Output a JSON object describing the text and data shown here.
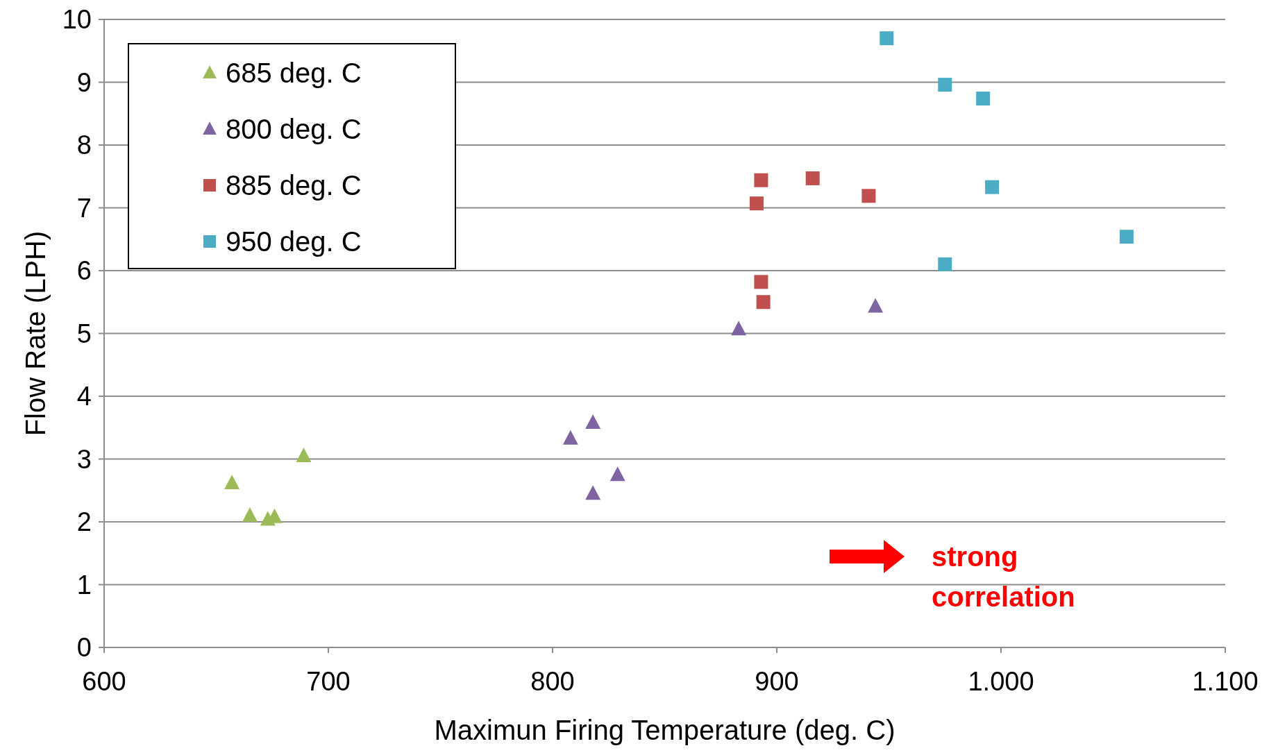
{
  "chart_data": {
    "type": "scatter",
    "xlabel": "Maximun Firing Temperature (deg. C)",
    "ylabel": "Flow Rate (LPH)",
    "xlim": [
      600,
      1100
    ],
    "xticks": [
      600,
      700,
      800,
      900,
      {
        "value": 1000,
        "label": "1.000"
      },
      {
        "value": 1100,
        "label": "1.100"
      }
    ],
    "ylim": [
      0,
      10
    ],
    "yticks": [
      0,
      1,
      2,
      3,
      4,
      5,
      6,
      7,
      8,
      9,
      10
    ],
    "grid": "y",
    "legend": "top left",
    "annotations": [
      "strong correlation"
    ],
    "series": [
      {
        "name": "685 deg. C",
        "color": "#9bbb59",
        "marker": "triangle",
        "x": [
          657,
          665,
          673,
          676,
          689
        ],
        "values": [
          2.62,
          2.1,
          2.04,
          2.08,
          3.05
        ]
      },
      {
        "name": "800 deg. C",
        "color": "#8064a2",
        "marker": "triangle",
        "x": [
          808,
          818,
          818,
          829,
          883,
          944
        ],
        "values": [
          3.33,
          3.58,
          2.45,
          2.75,
          5.07,
          5.43
        ]
      },
      {
        "name": "885 deg. C",
        "color": "#c0504d",
        "marker": "square",
        "x": [
          891,
          893,
          916,
          941,
          893,
          894
        ],
        "values": [
          7.07,
          7.44,
          7.47,
          7.19,
          5.82,
          5.5
        ]
      },
      {
        "name": "950 deg. C",
        "color": "#4bacc6",
        "marker": "square",
        "x": [
          949,
          975,
          992,
          996,
          1056,
          975
        ],
        "values": [
          9.7,
          8.96,
          8.74,
          7.33,
          6.54,
          6.1
        ]
      }
    ]
  }
}
